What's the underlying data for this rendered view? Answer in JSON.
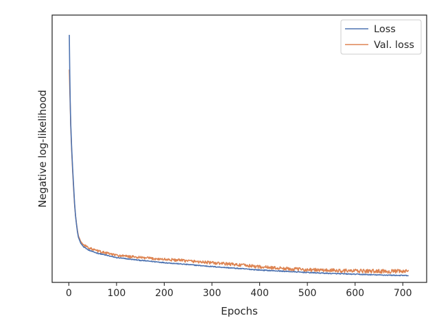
{
  "chart_data": {
    "type": "line",
    "title": "",
    "xlabel": "Epochs",
    "ylabel": "Negative log-likelihood",
    "xlim": [
      -35,
      750
    ],
    "xticks": [
      0,
      100,
      200,
      300,
      400,
      500,
      600,
      700
    ],
    "y_tick_labels_shown": false,
    "grid": false,
    "legend_position": "top-right",
    "series": [
      {
        "name": "Loss",
        "color": "#4c72b0",
        "x": [
          1,
          2,
          3,
          4,
          6,
          8,
          10,
          12,
          14,
          16,
          18,
          20,
          25,
          30,
          40,
          50,
          60,
          80,
          100,
          150,
          200,
          250,
          300,
          350,
          400,
          450,
          500,
          550,
          600,
          650,
          700,
          712
        ],
        "y": [
          100,
          84,
          72,
          64,
          54,
          46,
          39,
          32,
          27,
          23.5,
          20.5,
          18.3,
          15.8,
          14.6,
          13.2,
          12.4,
          11.8,
          10.9,
          10.0,
          8.9,
          8.0,
          7.2,
          6.4,
          5.7,
          5.0,
          4.5,
          4.0,
          3.6,
          3.3,
          3.0,
          2.8,
          2.75
        ]
      },
      {
        "name": "Val. loss",
        "color": "#dd8452",
        "x": [
          1,
          2,
          3,
          4,
          6,
          8,
          10,
          12,
          14,
          16,
          18,
          20,
          25,
          30,
          40,
          50,
          60,
          80,
          100,
          150,
          200,
          250,
          300,
          350,
          400,
          450,
          500,
          550,
          600,
          650,
          700,
          712
        ],
        "y": [
          86,
          78,
          71,
          63,
          53,
          45,
          38,
          31.5,
          27,
          23.8,
          21,
          18.8,
          16.5,
          15.3,
          14.2,
          13.3,
          12.7,
          11.8,
          10.9,
          10.0,
          9.3,
          8.7,
          7.9,
          7.2,
          6.3,
          5.6,
          5.1,
          4.8,
          4.6,
          4.5,
          4.4,
          4.4
        ]
      }
    ]
  }
}
